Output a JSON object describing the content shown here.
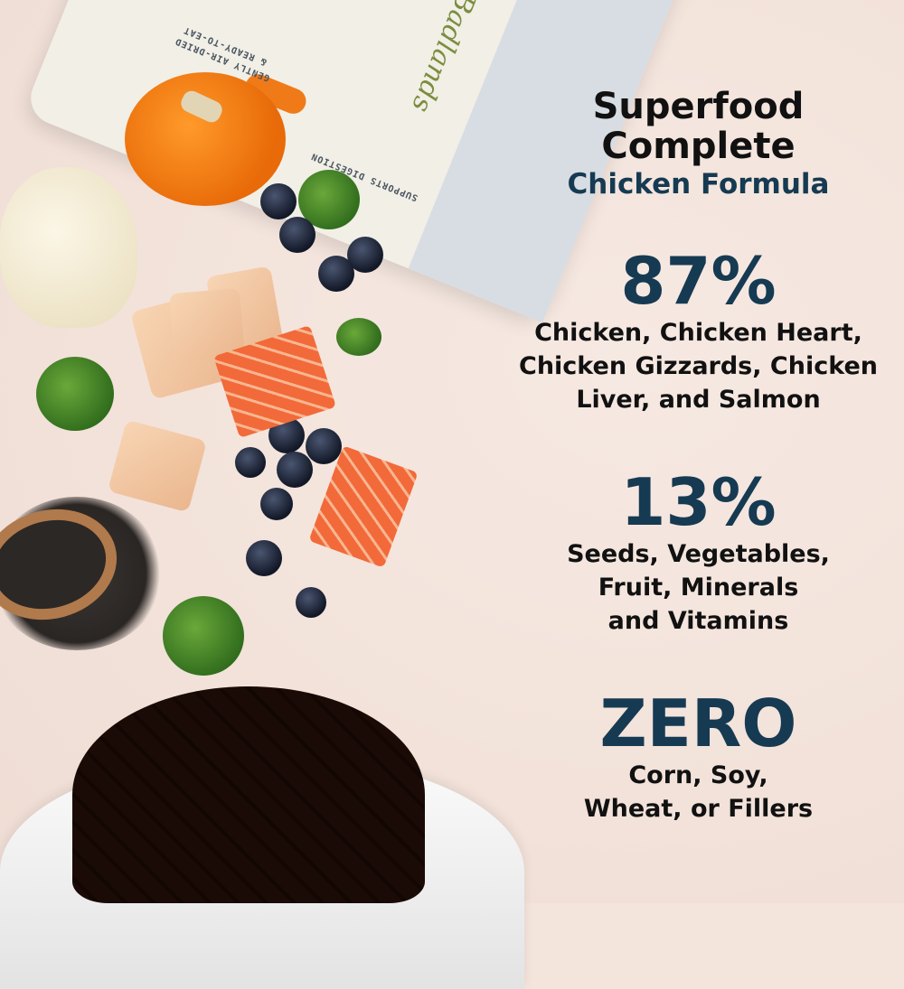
{
  "package": {
    "brand": "Badlands",
    "side_text_1": "GENTLY AIR-DRIED",
    "side_text_2": "& READY-TO-EAT",
    "side_text_3": "SUPPORTS DIGESTION"
  },
  "heading": {
    "line1": "Superfood",
    "line2": "Complete",
    "subtitle": "Chicken Formula"
  },
  "stats": [
    {
      "value": "87%",
      "lines": [
        "Chicken, Chicken Heart,",
        "Chicken Gizzards, Chicken",
        "Liver, and Salmon"
      ]
    },
    {
      "value": "13%",
      "lines": [
        "Seeds, Vegetables,",
        "Fruit, Minerals",
        "and Vitamins"
      ]
    },
    {
      "value": "ZERO",
      "lines": [
        "Corn, Soy,",
        "Wheat, or Fillers"
      ]
    }
  ],
  "colors": {
    "accent": "#163a52",
    "background": "#f3e4dc",
    "text": "#111111"
  }
}
